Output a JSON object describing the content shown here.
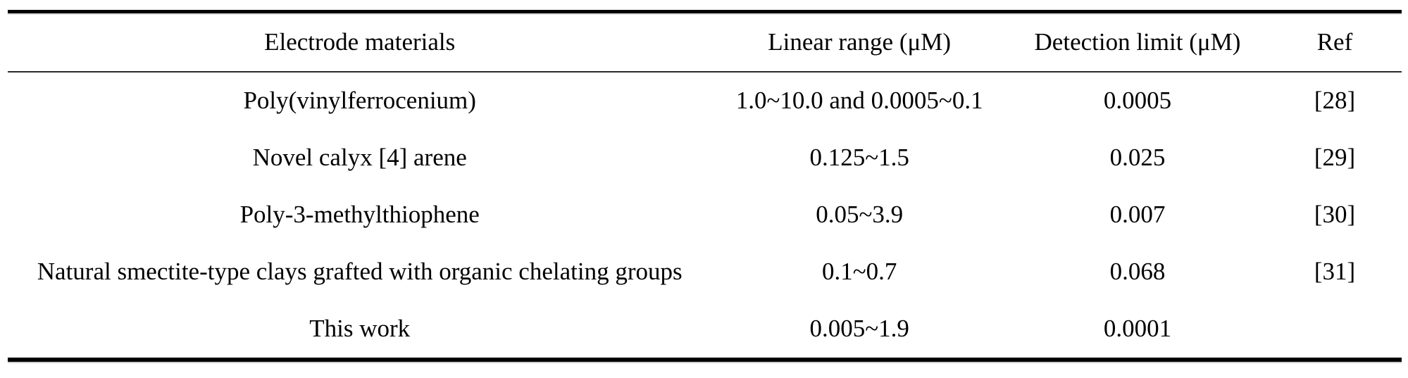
{
  "table": {
    "headers": [
      "Electrode materials",
      "Linear range (μM)",
      "Detection limit (μM)",
      "Ref"
    ],
    "rows": [
      {
        "material": "Poly(vinylferrocenium)",
        "linear_range": "1.0~10.0 and 0.0005~0.1",
        "detection_limit": "0.0005",
        "ref": "[28]"
      },
      {
        "material": "Novel calyx [4] arene",
        "linear_range": "0.125~1.5",
        "detection_limit": "0.025",
        "ref": "[29]"
      },
      {
        "material": "Poly-3-methylthiophene",
        "linear_range": "0.05~3.9",
        "detection_limit": "0.007",
        "ref": "[30]"
      },
      {
        "material": "Natural smectite-type clays grafted with organic chelating groups",
        "linear_range": "0.1~0.7",
        "detection_limit": "0.068",
        "ref": "[31]"
      },
      {
        "material": "This work",
        "linear_range": "0.005~1.9",
        "detection_limit": "0.0001",
        "ref": ""
      }
    ]
  },
  "colors": {
    "text": "#000000",
    "rule_thick": "#000000",
    "rule_thin": "#2a2a2a",
    "background": "#ffffff"
  }
}
